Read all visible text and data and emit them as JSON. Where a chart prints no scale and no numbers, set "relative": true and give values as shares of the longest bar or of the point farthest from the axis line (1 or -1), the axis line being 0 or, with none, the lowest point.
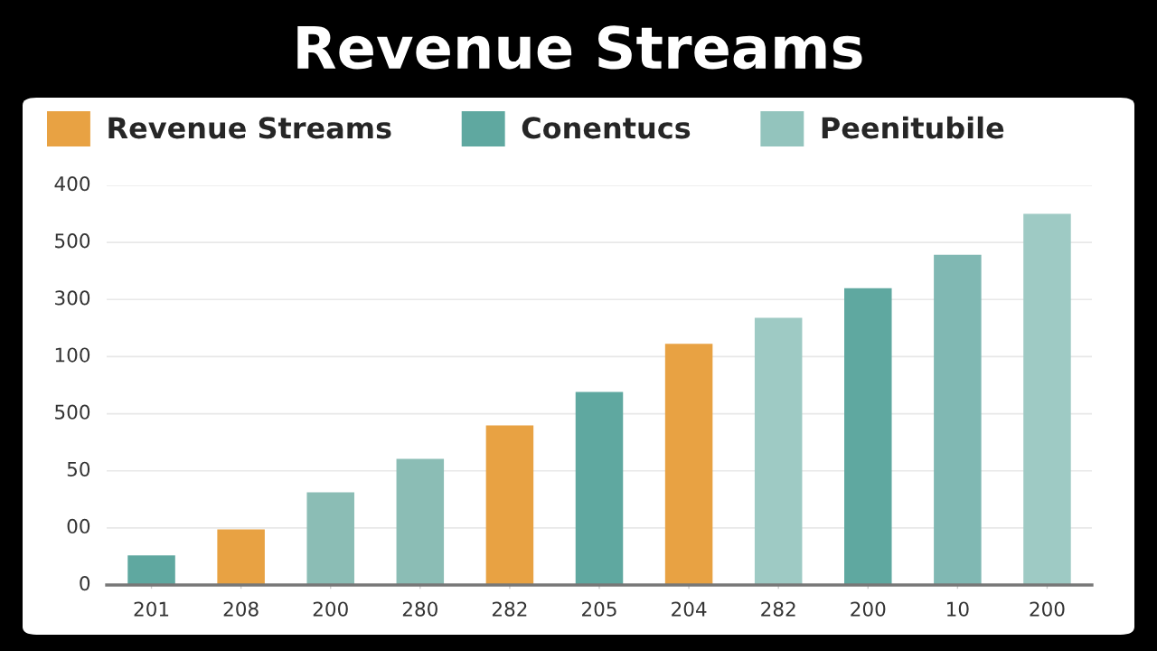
{
  "chart_data": {
    "type": "bar",
    "title": "Revenue Streams",
    "categories": [
      "201",
      "208",
      "200",
      "280",
      "282",
      "205",
      "204",
      "282",
      "200",
      "10",
      "200"
    ],
    "series": [
      {
        "name": "Revenue Streams",
        "color": "#e8a243",
        "values": [
          null,
          0.15,
          null,
          null,
          0.43,
          null,
          0.65,
          null,
          null,
          null,
          null
        ]
      },
      {
        "name": "Conentucs",
        "color": "#5fa8a0",
        "values": [
          0.08,
          null,
          null,
          null,
          null,
          0.52,
          null,
          null,
          0.8,
          null,
          null
        ]
      },
      {
        "name": "Peenitubile",
        "color": "#93c4bd",
        "values": [
          null,
          null,
          0.25,
          0.34,
          null,
          null,
          null,
          0.72,
          null,
          0.89,
          1
        ],
        "colors": [
          null,
          null,
          "#8bbdb5",
          "#8bbdb5",
          null,
          null,
          null,
          "#9ecac4",
          null,
          "#80b8b3",
          "#9ecac4"
        ]
      }
    ],
    "stacked": true,
    "relative": true,
    "annotations": [
      "400",
      "500",
      "300",
      "100",
      "500",
      "50",
      "00",
      "0"
    ],
    "grid": "y",
    "legend": "top"
  }
}
